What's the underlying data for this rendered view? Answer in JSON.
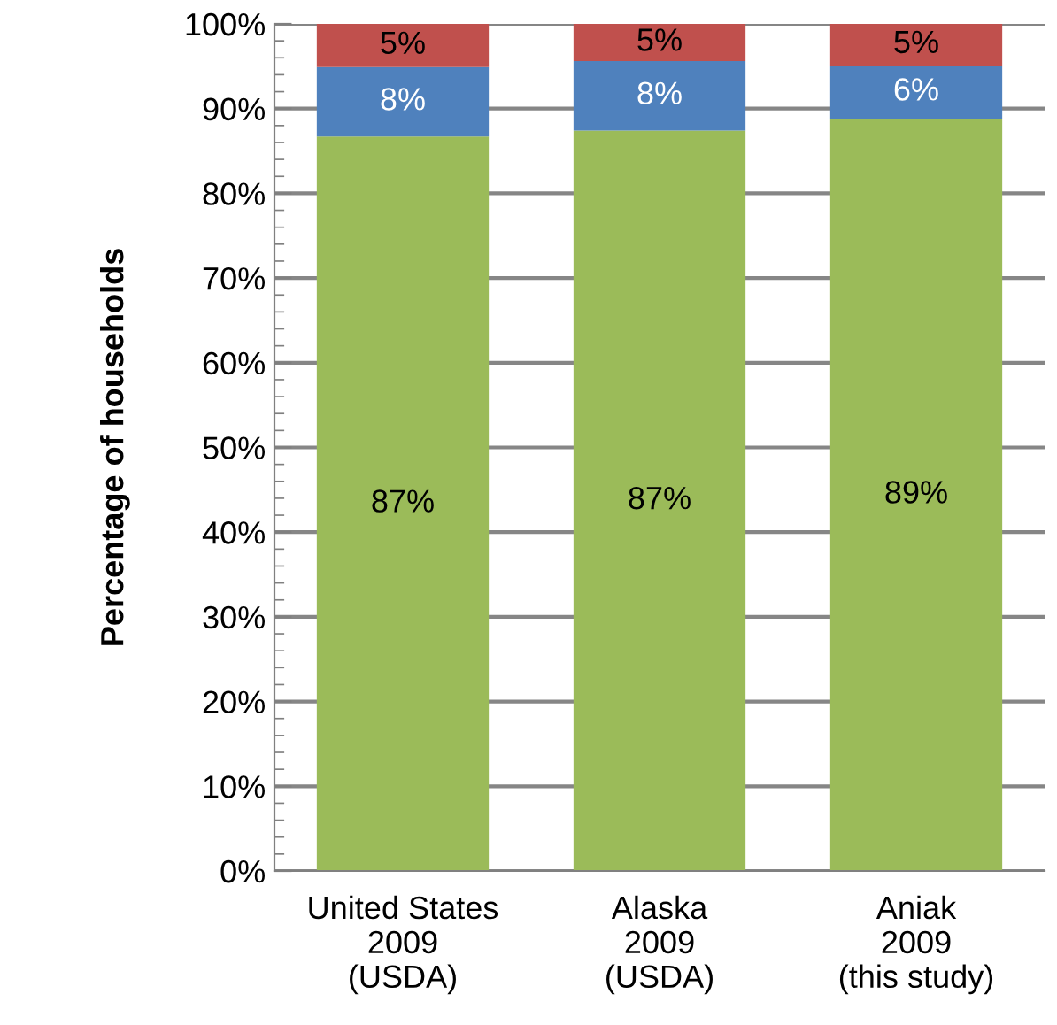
{
  "chart_data": {
    "type": "bar",
    "stacked": true,
    "ylabel": "Percentage of households",
    "categories": [
      "United States\n2009\n(USDA)",
      "Alaska\n2009\n(USDA)",
      "Aniak\n2009\n(this study)"
    ],
    "series": [
      {
        "color": "#9bbb59",
        "values": [
          86.7,
          87.4,
          88.8
        ],
        "value_labels": [
          "87%",
          "87%",
          "89%"
        ]
      },
      {
        "color": "#4f81bd",
        "values": [
          8.2,
          8.2,
          6.3
        ],
        "value_labels": [
          "8%",
          "8%",
          "6%"
        ]
      },
      {
        "color": "#c0504d",
        "values": [
          5.1,
          4.6,
          4.9
        ],
        "value_labels": [
          "5%",
          "5%",
          "5%"
        ]
      }
    ],
    "ylim": [
      0,
      100
    ],
    "yticks": [
      {
        "value": 0,
        "label": "0%"
      },
      {
        "value": 10,
        "label": "10%"
      },
      {
        "value": 20,
        "label": "20%"
      },
      {
        "value": 30,
        "label": "30%"
      },
      {
        "value": 40,
        "label": "40%"
      },
      {
        "value": 50,
        "label": "50%"
      },
      {
        "value": 60,
        "label": "60%"
      },
      {
        "value": 70,
        "label": "70%"
      },
      {
        "value": 80,
        "label": "80%"
      },
      {
        "value": 90,
        "label": "90%"
      },
      {
        "value": 100,
        "label": "100%"
      }
    ],
    "grid": "y",
    "legend": false
  }
}
